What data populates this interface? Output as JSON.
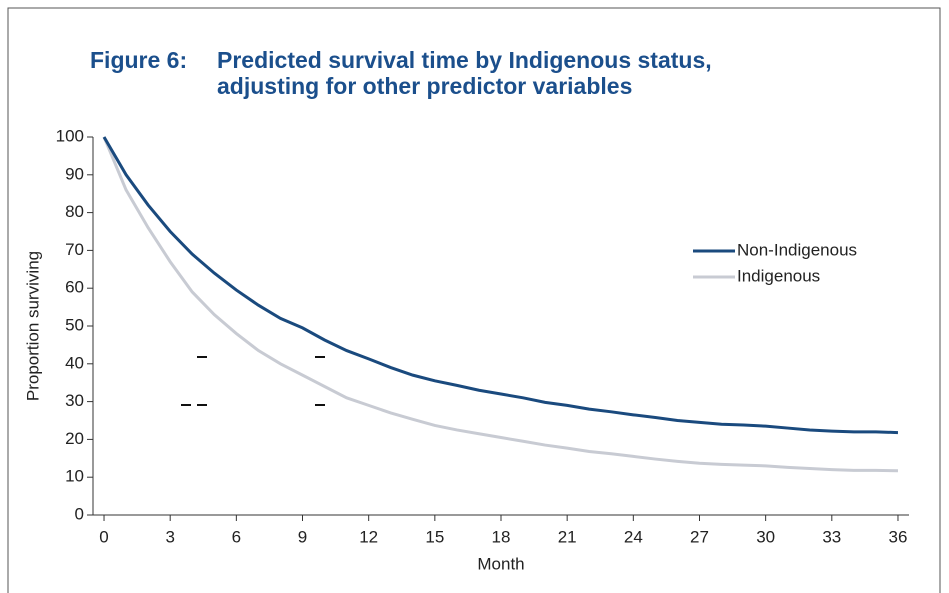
{
  "chart_data": {
    "type": "line",
    "title": "Figure 6:",
    "subtitle": "Predicted survival time by Indigenous status,",
    "subtitle2": "adjusting for other predictor variables",
    "x_label": "Month",
    "y_label": "Proportion surviving",
    "x": [
      0,
      1,
      2,
      3,
      4,
      5,
      6,
      7,
      8,
      9,
      10,
      11,
      12,
      13,
      14,
      15,
      16,
      17,
      18,
      19,
      20,
      21,
      22,
      23,
      24,
      25,
      26,
      27,
      28,
      29,
      30,
      31,
      32,
      33,
      34,
      35,
      36
    ],
    "series": [
      {
        "name": "Non-Indigenous",
        "color": "#1a4a7e",
        "values": [
          100,
          90,
          82,
          75,
          69,
          64,
          59.5,
          55.5,
          52,
          49.5,
          46.3,
          43.5,
          41.3,
          39,
          37,
          35.5,
          34.3,
          33,
          32,
          31,
          29.8,
          29,
          28,
          27.3,
          26.5,
          25.8,
          25,
          24.5,
          24,
          23.8,
          23.5,
          23,
          22.5,
          22.2,
          22,
          22,
          21.8
        ]
      },
      {
        "name": "Indigenous",
        "color": "#c8cbd3",
        "values": [
          100,
          86,
          76,
          67,
          59,
          53,
          48,
          43.5,
          40,
          37,
          34,
          31,
          29,
          27,
          25.3,
          23.7,
          22.5,
          21.5,
          20.5,
          19.5,
          18.5,
          17.7,
          16.8,
          16.2,
          15.5,
          14.8,
          14.2,
          13.7,
          13.4,
          13.2,
          13,
          12.6,
          12.3,
          12,
          11.8,
          11.8,
          11.7
        ]
      }
    ],
    "xlim": [
      -0.5,
      36.5
    ],
    "xticks": [
      0,
      3,
      6,
      9,
      12,
      15,
      18,
      21,
      24,
      27,
      30,
      33,
      36
    ],
    "ylim": [
      0,
      100
    ],
    "yticks": [
      0,
      10,
      20,
      30,
      40,
      50,
      60,
      70,
      80,
      90,
      100
    ],
    "legend": "right"
  }
}
